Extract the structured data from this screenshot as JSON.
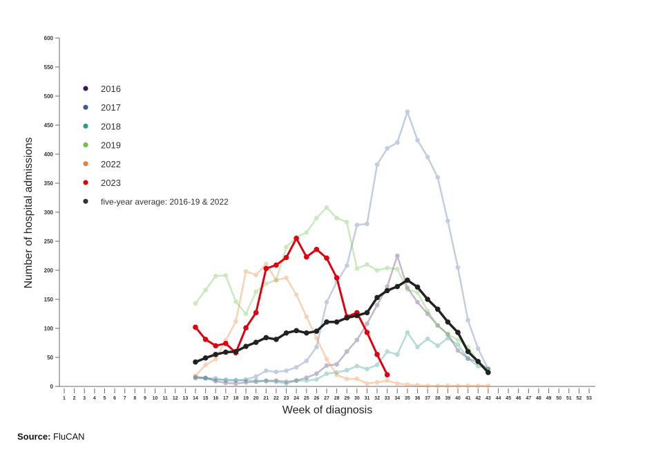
{
  "chart_data": {
    "type": "line",
    "title": "",
    "xlabel": "Week of diagnosis",
    "ylabel": "Number of hospital admissions",
    "ylim": [
      0,
      600
    ],
    "yticks": [
      0,
      50,
      100,
      150,
      200,
      250,
      300,
      350,
      400,
      450,
      500,
      550,
      600
    ],
    "xticks": [
      1,
      2,
      3,
      4,
      5,
      6,
      7,
      8,
      9,
      10,
      11,
      12,
      13,
      14,
      15,
      16,
      17,
      18,
      19,
      20,
      21,
      22,
      23,
      24,
      25,
      26,
      27,
      28,
      29,
      30,
      31,
      32,
      33,
      34,
      35,
      36,
      37,
      38,
      39,
      40,
      41,
      42,
      43,
      44,
      45,
      46,
      47,
      48,
      49,
      50,
      51,
      52,
      53
    ],
    "grid": false,
    "legend_position": "upper-left-inside",
    "series": [
      {
        "name": "2016",
        "color": "#3b1556",
        "opacity": 0.3,
        "start_week": 14,
        "values": [
          16,
          15,
          9,
          6,
          5,
          7,
          8,
          10,
          10,
          8,
          10,
          15,
          22,
          36,
          38,
          60,
          80,
          108,
          140,
          172,
          225,
          170,
          145,
          125,
          105,
          90,
          62,
          48,
          42,
          30
        ]
      },
      {
        "name": "2017",
        "color": "#3b5ba0",
        "opacity": 0.3,
        "start_week": 14,
        "values": [
          14,
          14,
          14,
          10,
          10,
          12,
          17,
          27,
          25,
          27,
          33,
          44,
          68,
          145,
          180,
          208,
          278,
          280,
          382,
          410,
          420,
          473,
          424,
          395,
          360,
          285,
          205,
          114,
          65,
          30
        ]
      },
      {
        "name": "2018",
        "color": "#2a9d8f",
        "opacity": 0.35,
        "start_week": 14,
        "values": [
          16,
          14,
          11,
          12,
          11,
          10,
          10,
          9,
          8,
          5,
          10,
          10,
          12,
          22,
          24,
          28,
          35,
          30,
          37,
          60,
          55,
          93,
          68,
          82,
          70,
          83,
          72,
          48,
          35,
          30
        ]
      },
      {
        "name": "2019",
        "color": "#6cc24a",
        "opacity": 0.35,
        "start_week": 14,
        "values": [
          143,
          166,
          190,
          191,
          146,
          125,
          163,
          177,
          183,
          240,
          257,
          265,
          290,
          308,
          290,
          283,
          203,
          210,
          200,
          204,
          202,
          167,
          162,
          130,
          105,
          90,
          80,
          68,
          42,
          28
        ]
      },
      {
        "name": "2022",
        "color": "#f08030",
        "opacity": 0.35,
        "start_week": 14,
        "values": [
          18,
          37,
          47,
          79,
          112,
          198,
          192,
          211,
          183,
          187,
          158,
          120,
          83,
          47,
          20,
          13,
          13,
          5,
          7,
          10,
          5,
          3,
          2,
          1,
          1,
          1,
          1,
          1,
          1,
          1
        ]
      },
      {
        "name": "2023",
        "color": "#e00010",
        "opacity": 1.0,
        "start_week": 14,
        "bold": true,
        "values": [
          102,
          81,
          70,
          74,
          58,
          101,
          127,
          203,
          209,
          222,
          255,
          223,
          236,
          221,
          187,
          120,
          127,
          93,
          55,
          20
        ]
      },
      {
        "name": "five-year average: 2016-19 & 2022",
        "color": "#222222",
        "opacity": 1.0,
        "start_week": 14,
        "dashed": true,
        "values": [
          42,
          49,
          55,
          59,
          60,
          69,
          76,
          84,
          81,
          92,
          96,
          92,
          95,
          111,
          111,
          118,
          122,
          127,
          153,
          165,
          172,
          183,
          171,
          150,
          133,
          111,
          93,
          60,
          43,
          24
        ]
      }
    ]
  },
  "legend": {
    "items": [
      {
        "label": "2016",
        "color": "#3b1556"
      },
      {
        "label": "2017",
        "color": "#3b5ba0"
      },
      {
        "label": "2018",
        "color": "#2a9d8f"
      },
      {
        "label": "2019",
        "color": "#6cc24a"
      },
      {
        "label": "2022",
        "color": "#f08030"
      },
      {
        "label": "2023",
        "color": "#e00010"
      },
      {
        "label": "five-year average: 2016-19 & 2022",
        "color": "#333333"
      }
    ]
  },
  "source": {
    "label": "Source:",
    "value": "FluCAN"
  }
}
